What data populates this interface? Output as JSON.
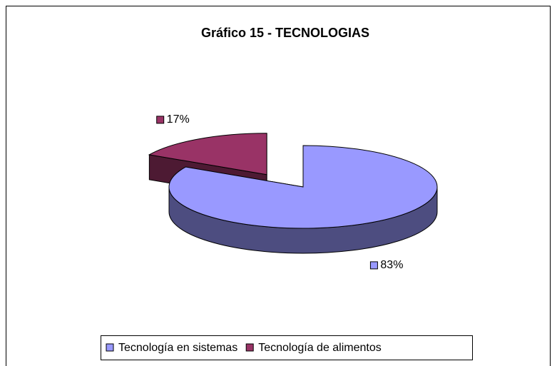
{
  "chart_data": {
    "type": "pie3d",
    "title": "Gráfico 15 - TECNOLOGIAS",
    "categories": [
      "Tecnología en sistemas",
      "Tecnología de alimentos"
    ],
    "values": [
      83,
      17
    ],
    "value_labels": [
      "83%",
      "17%"
    ],
    "colors": [
      "#9999FF",
      "#993366"
    ],
    "legend": "bottom"
  }
}
